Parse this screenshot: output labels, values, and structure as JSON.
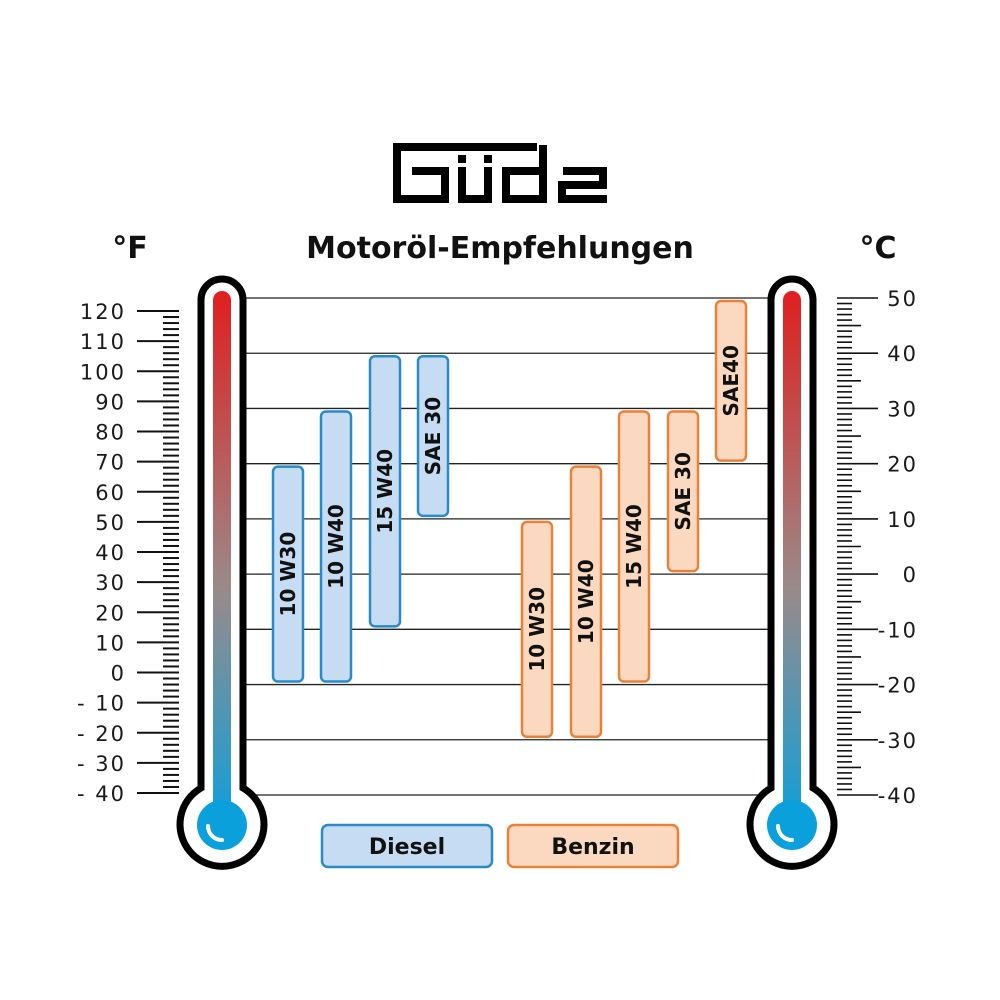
{
  "logo_text": "Güde",
  "chart_data": {
    "type": "bar",
    "orientation": "range-vertical",
    "title": "Motoröl-Empfehlungen",
    "left_axis": {
      "unit": "°F",
      "ylim": [
        -40,
        120
      ],
      "ticks": [
        120,
        110,
        100,
        90,
        80,
        70,
        60,
        50,
        40,
        30,
        20,
        10,
        0,
        -10,
        -20,
        -30,
        -40
      ],
      "tick_labels": [
        "120",
        "110",
        "100",
        "90",
        "80",
        "70",
        "60",
        "50",
        "40",
        "30",
        "20",
        "10",
        "0",
        "- 10",
        "- 20",
        "- 30",
        "- 40"
      ]
    },
    "right_axis": {
      "unit": "°C",
      "ylim": [
        -40,
        50
      ],
      "ticks": [
        50,
        40,
        30,
        20,
        10,
        0,
        -10,
        -20,
        -30,
        -40
      ],
      "tick_labels": [
        "50",
        "40",
        "30",
        "20",
        "10",
        "0",
        "-10",
        "-20",
        "-30",
        "-40"
      ]
    },
    "grid": true,
    "series": [
      {
        "name": "Diesel",
        "color": "#2a8ac8",
        "fill": "#c6dcf3",
        "bars": [
          {
            "label": "10 W30",
            "min": -20,
            "max": 20
          },
          {
            "label": "10 W40",
            "min": -20,
            "max": 30
          },
          {
            "label": "15 W40",
            "min": -10,
            "max": 40
          },
          {
            "label": "SAE 30",
            "min": 10,
            "max": 40
          }
        ]
      },
      {
        "name": "Benzin",
        "color": "#e8823a",
        "fill": "#fbd9c0",
        "bars": [
          {
            "label": "10 W30",
            "min": -30,
            "max": 10
          },
          {
            "label": "10 W40",
            "min": -30,
            "max": 20
          },
          {
            "label": "15 W40",
            "min": -20,
            "max": 30
          },
          {
            "label": "SAE 30",
            "min": 0,
            "max": 30
          },
          {
            "label": "SAE40",
            "min": 20,
            "max": 50
          }
        ]
      }
    ],
    "legend": {
      "placement": "bottom-center",
      "entries": [
        "Diesel",
        "Benzin"
      ]
    },
    "thermometer_colors": {
      "hot": "#e01f1f",
      "mid": "#9a8a8a",
      "cold": "#0aa0dc"
    }
  }
}
